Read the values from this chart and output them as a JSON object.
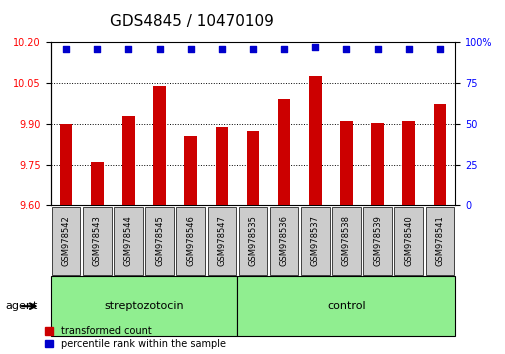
{
  "title": "GDS4845 / 10470109",
  "samples": [
    "GSM978542",
    "GSM978543",
    "GSM978544",
    "GSM978545",
    "GSM978546",
    "GSM978547",
    "GSM978535",
    "GSM978536",
    "GSM978537",
    "GSM978538",
    "GSM978539",
    "GSM978540",
    "GSM978541"
  ],
  "bar_values": [
    9.9,
    9.76,
    9.93,
    10.04,
    9.855,
    9.89,
    9.875,
    9.99,
    10.075,
    9.91,
    9.905,
    9.91,
    9.975
  ],
  "percentile_values": [
    96,
    96,
    96,
    96,
    96,
    96,
    96,
    96,
    97,
    96,
    96,
    96,
    96
  ],
  "ylim_left": [
    9.6,
    10.2
  ],
  "ylim_right": [
    0,
    100
  ],
  "yticks_left": [
    9.6,
    9.75,
    9.9,
    10.05,
    10.2
  ],
  "yticks_right": [
    0,
    25,
    50,
    75,
    100
  ],
  "bar_color": "#cc0000",
  "dot_color": "#0000cc",
  "group1_label": "streptozotocin",
  "group2_label": "control",
  "group1_count": 6,
  "group2_count": 7,
  "agent_label": "agent",
  "legend_bar": "transformed count",
  "legend_dot": "percentile rank within the sample",
  "sample_bg_color": "#cccccc",
  "group_bg_color": "#90ee90",
  "title_fontsize": 11,
  "tick_fontsize": 7,
  "label_fontsize": 7,
  "sample_fontsize": 6
}
